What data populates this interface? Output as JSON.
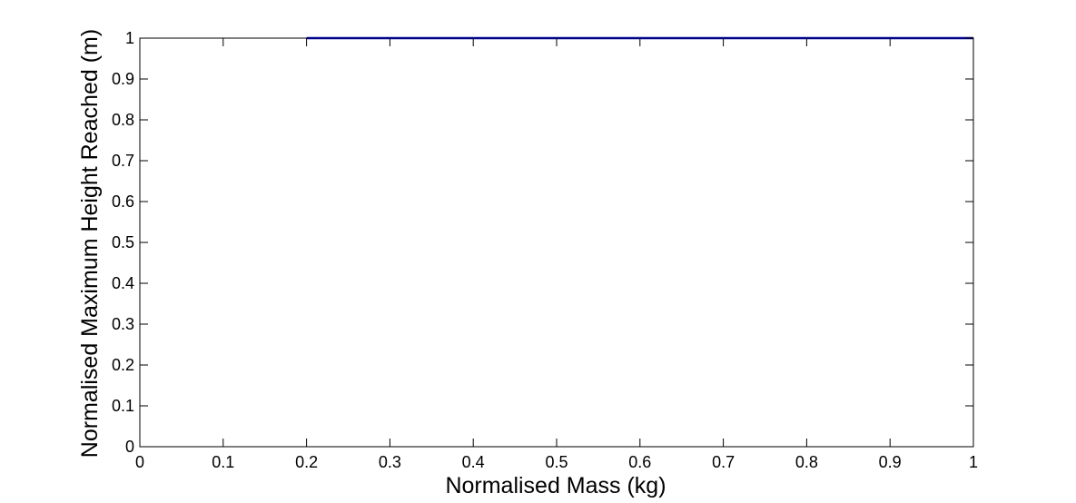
{
  "chart_data": {
    "type": "line",
    "title": "",
    "xlabel": "Normalised Mass (kg)",
    "ylabel": "Normalised Maximum Height Reached (m)",
    "xlim": [
      0,
      1
    ],
    "ylim": [
      0,
      1
    ],
    "xticks": [
      "0",
      "0.1",
      "0.2",
      "0.3",
      "0.4",
      "0.5",
      "0.6",
      "0.7",
      "0.8",
      "0.9",
      "1"
    ],
    "yticks": [
      "0",
      "0.1",
      "0.2",
      "0.3",
      "0.4",
      "0.5",
      "0.6",
      "0.7",
      "0.8",
      "0.9",
      "1"
    ],
    "grid": false,
    "series": [
      {
        "color": "#00008B",
        "x": [
          0.2,
          1.0
        ],
        "y": [
          1.0,
          1.0
        ]
      }
    ]
  }
}
